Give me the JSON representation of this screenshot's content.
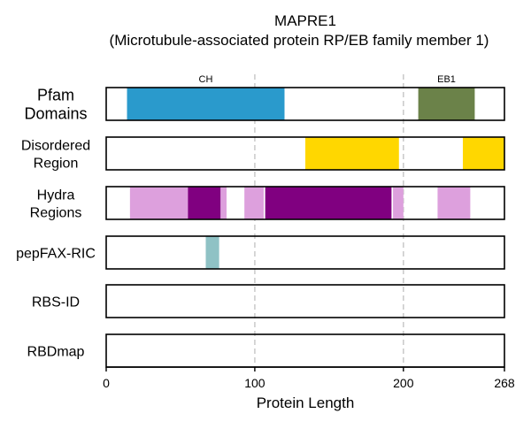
{
  "title": {
    "line1": "MAPRE1",
    "line2": "(Microtubule-associated protein RP/EB family member 1)"
  },
  "chart_data": {
    "type": "domain-track",
    "protein_length": 268,
    "xlabel": "Protein Length",
    "x_ticks": [
      0,
      100,
      200,
      268
    ],
    "reference_lines": [
      100,
      200
    ],
    "tracks": [
      {
        "label": [
          "Pfam",
          "Domains"
        ],
        "segments": [
          {
            "start": 14,
            "end": 120,
            "color": "#2a9acc",
            "label": "CH"
          },
          {
            "start": 210,
            "end": 248,
            "color": "#6b8249",
            "label": "EB1"
          }
        ]
      },
      {
        "label": [
          "Disordered",
          "Region"
        ],
        "segments": [
          {
            "start": 134,
            "end": 197,
            "color": "#ffd700"
          },
          {
            "start": 240,
            "end": 268,
            "color": "#ffd700"
          }
        ]
      },
      {
        "label": [
          "Hydra",
          "Regions"
        ],
        "segments": [
          {
            "start": 16,
            "end": 55,
            "color": "#dda0dd"
          },
          {
            "start": 55,
            "end": 77,
            "color": "#800080"
          },
          {
            "start": 77,
            "end": 81,
            "color": "#dda0dd"
          },
          {
            "start": 93,
            "end": 106,
            "color": "#dda0dd"
          },
          {
            "start": 107,
            "end": 192,
            "color": "#800080"
          },
          {
            "start": 193,
            "end": 200,
            "color": "#dda0dd"
          },
          {
            "start": 223,
            "end": 245,
            "color": "#dda0dd"
          }
        ]
      },
      {
        "label": [
          "pepFAX-RIC"
        ],
        "segments": [
          {
            "start": 67,
            "end": 76,
            "color": "#8fc2c5"
          }
        ]
      },
      {
        "label": [
          "RBS-ID"
        ],
        "segments": []
      },
      {
        "label": [
          "RBDmap"
        ],
        "segments": []
      }
    ]
  }
}
